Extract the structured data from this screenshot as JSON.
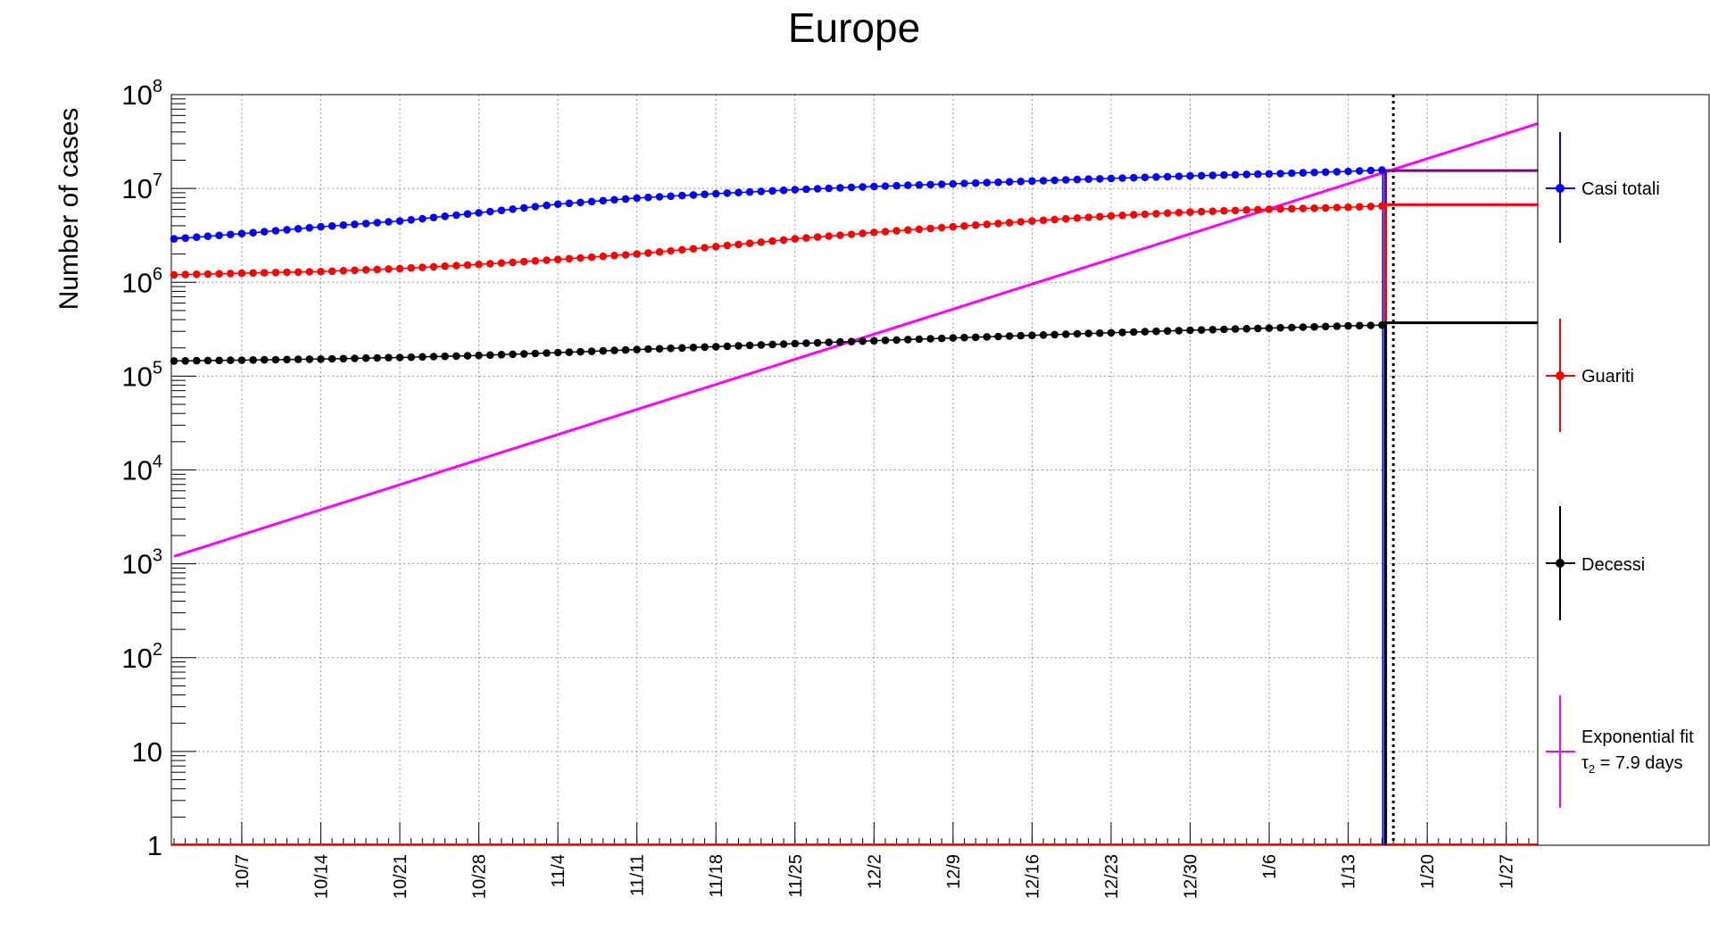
{
  "chart_data": {
    "type": "scatter",
    "title": "Europe",
    "ylabel": "Number of cases",
    "xlabel": "",
    "yscale": "log",
    "ylim": [
      1,
      100000000
    ],
    "x_axis": {
      "start_date": "2020-10-01",
      "end_date": "2021-01-31",
      "tick_labels": [
        "10/7",
        "10/14",
        "10/21",
        "10/28",
        "11/4",
        "11/11",
        "11/18",
        "11/25",
        "12/2",
        "12/9",
        "12/16",
        "12/23",
        "12/30",
        "1/6",
        "1/13",
        "1/20",
        "1/27"
      ]
    },
    "y_tick_labels": [
      {
        "value": 1,
        "base": "1",
        "exp": ""
      },
      {
        "value": 10,
        "base": "10",
        "exp": ""
      },
      {
        "value": 100,
        "base": "10",
        "exp": "2"
      },
      {
        "value": 1000,
        "base": "10",
        "exp": "3"
      },
      {
        "value": 10000,
        "base": "10",
        "exp": "4"
      },
      {
        "value": 100000,
        "base": "10",
        "exp": "5"
      },
      {
        "value": 1000000,
        "base": "10",
        "exp": "6"
      },
      {
        "value": 10000000,
        "base": "10",
        "exp": "7"
      },
      {
        "value": 100000000,
        "base": "10",
        "exp": "8"
      }
    ],
    "grid": true,
    "legend_position": "right",
    "data_last_date": "2021-01-16",
    "step_end_date": "2021-01-30",
    "marker_date": "2021-01-17",
    "series": [
      {
        "name": "Casi totali",
        "color": "#0000ff",
        "anchors": [
          [
            "2020-10-01",
            2900000
          ],
          [
            "2020-10-07",
            3300000
          ],
          [
            "2020-10-14",
            3900000
          ],
          [
            "2020-10-21",
            4500000
          ],
          [
            "2020-10-28",
            5500000
          ],
          [
            "2020-11-04",
            6800000
          ],
          [
            "2020-11-11",
            7900000
          ],
          [
            "2020-11-18",
            8800000
          ],
          [
            "2020-11-25",
            9700000
          ],
          [
            "2020-12-02",
            10500000
          ],
          [
            "2020-12-09",
            11200000
          ],
          [
            "2020-12-16",
            12000000
          ],
          [
            "2020-12-23",
            12800000
          ],
          [
            "2020-12-30",
            13600000
          ],
          [
            "2021-01-06",
            14300000
          ],
          [
            "2021-01-13",
            15200000
          ],
          [
            "2021-01-16",
            15700000
          ]
        ],
        "step_value": 15500000
      },
      {
        "name": "Guariti",
        "color": "#ff0000",
        "anchors": [
          [
            "2020-10-01",
            1200000
          ],
          [
            "2020-10-07",
            1250000
          ],
          [
            "2020-10-14",
            1300000
          ],
          [
            "2020-10-21",
            1400000
          ],
          [
            "2020-10-28",
            1550000
          ],
          [
            "2020-11-04",
            1750000
          ],
          [
            "2020-11-11",
            2000000
          ],
          [
            "2020-11-18",
            2400000
          ],
          [
            "2020-11-25",
            2900000
          ],
          [
            "2020-12-02",
            3400000
          ],
          [
            "2020-12-09",
            3900000
          ],
          [
            "2020-12-16",
            4500000
          ],
          [
            "2020-12-23",
            5100000
          ],
          [
            "2020-12-30",
            5600000
          ],
          [
            "2021-01-06",
            6000000
          ],
          [
            "2021-01-13",
            6300000
          ],
          [
            "2021-01-16",
            6500000
          ]
        ],
        "step_value": 6700000
      },
      {
        "name": "Decessi",
        "color": "#000000",
        "anchors": [
          [
            "2020-10-01",
            145000
          ],
          [
            "2020-10-07",
            148000
          ],
          [
            "2020-10-14",
            152000
          ],
          [
            "2020-10-21",
            158000
          ],
          [
            "2020-10-28",
            166000
          ],
          [
            "2020-11-04",
            178000
          ],
          [
            "2020-11-11",
            192000
          ],
          [
            "2020-11-18",
            206000
          ],
          [
            "2020-11-25",
            222000
          ],
          [
            "2020-12-02",
            238000
          ],
          [
            "2020-12-09",
            255000
          ],
          [
            "2020-12-16",
            272000
          ],
          [
            "2020-12-23",
            290000
          ],
          [
            "2020-12-30",
            308000
          ],
          [
            "2021-01-06",
            325000
          ],
          [
            "2021-01-13",
            343000
          ],
          [
            "2021-01-16",
            350000
          ]
        ],
        "step_value": 370000
      }
    ],
    "fit": {
      "name": "Exponential fit",
      "label_line2_base": "τ",
      "label_line2_sub": "2",
      "label_line2_rest": " = 7.9 days",
      "color": "#ff00ff",
      "doubling_days": 7.9,
      "start": [
        "2020-10-01",
        1200
      ],
      "end": [
        "2021-01-30",
        50000000
      ]
    },
    "extra_step_color": "#800080"
  }
}
